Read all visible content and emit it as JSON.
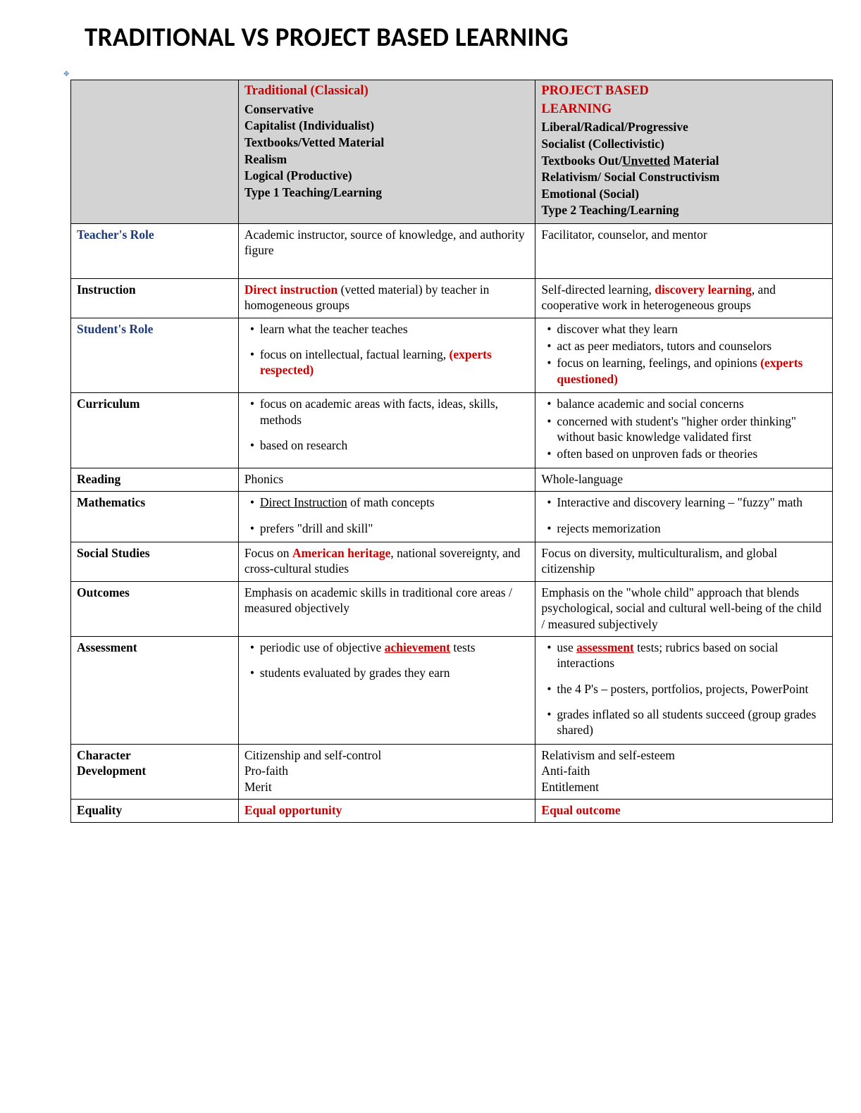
{
  "title": "TRADITIONAL VS PROJECT BASED LEARNING",
  "colors": {
    "red": "#cc0000",
    "blue_label": "#1f3a7a",
    "header_bg": "#d3d3d3",
    "border": "#000000",
    "text": "#000000"
  },
  "header": {
    "traditional": {
      "title": "Traditional (Classical)",
      "lines": [
        "Conservative",
        "Capitalist (Individualist)",
        "Textbooks/Vetted Material",
        "Realism",
        "Logical (Productive)",
        "Type 1  Teaching/Learning"
      ]
    },
    "pbl": {
      "title_line1": "PROJECT BASED",
      "title_line2": "LEARNING",
      "lines_html": [
        "Liberal/Radical/Progressive",
        "Socialist (Collectivistic)",
        "Textbooks Out/<span class='u'>Unvetted</span> Material",
        "Relativism/ Social Constructivism",
        "Emotional (Social)",
        "Type 2 Teaching/Learning"
      ]
    }
  },
  "rows": {
    "teachers_role": {
      "label": "Teacher's Role",
      "label_blue": true,
      "trad": "Academic instructor, source of knowledge, and authority figure",
      "pbl": "Facilitator, counselor, and mentor",
      "tall": true
    },
    "instruction": {
      "label": "Instruction",
      "trad_html": "<span class='red'>Direct instruction</span> (vetted material) by teacher in homogeneous groups",
      "pbl_html": "Self-directed learning, <span class='red'>discovery learning</span>, and cooperative work in heterogeneous groups"
    },
    "students_role": {
      "label": "Student's Role",
      "label_blue": true,
      "trad_list_html": [
        "learn what the teacher teaches",
        "focus on intellectual, factual learning,  <span class='red'>(experts respected)</span>"
      ],
      "trad_list_gaps": [
        false,
        true
      ],
      "pbl_list_html": [
        "discover what they learn",
        "act as peer mediators, tutors and counselors",
        "focus on learning, feelings, and opinions <span class='red'>(experts questioned)</span>"
      ],
      "pbl_list_gaps": [
        false,
        false,
        false
      ]
    },
    "curriculum": {
      "label": "Curriculum",
      "trad_list_html": [
        "focus on academic areas with facts, ideas, skills, methods",
        "based on research"
      ],
      "trad_list_gaps": [
        false,
        true
      ],
      "pbl_list_html": [
        "balance academic and social concerns",
        "concerned with student's \"higher order thinking\" without basic knowledge validated first",
        "often based on unproven fads or theories"
      ],
      "pbl_list_gaps": [
        false,
        false,
        false
      ]
    },
    "reading": {
      "label": "Reading",
      "trad": "Phonics",
      "pbl": "Whole-language"
    },
    "mathematics": {
      "label": "Mathematics",
      "trad_list_html": [
        "<span class='u'>Direct Instruction</span> of math concepts",
        "prefers \"drill and skill\""
      ],
      "trad_list_gaps": [
        false,
        true
      ],
      "pbl_list_html": [
        "Interactive and discovery learning – \"fuzzy\" math",
        "rejects memorization"
      ],
      "pbl_list_gaps": [
        false,
        true
      ]
    },
    "social_studies": {
      "label": "Social Studies",
      "trad_html": "Focus on <span class='red'>American heritage</span>, national sovereignty, and cross-cultural studies",
      "pbl": "Focus on diversity, multiculturalism, and global citizenship"
    },
    "outcomes": {
      "label": "Outcomes",
      "trad": "Emphasis on academic skills in traditional core areas / measured objectively",
      "pbl": "Emphasis on the \"whole child\" approach  that blends psychological, social and cultural well-being of the child / measured subjectively"
    },
    "assessment": {
      "label": "Assessment",
      "trad_list_html": [
        "periodic use of objective <span class='red u'>achievement</span> tests",
        "students evaluated by grades they earn"
      ],
      "trad_list_gaps": [
        false,
        true
      ],
      "pbl_list_html": [
        "use <span class='red u'>assessment</span>  tests; rubrics based on social interactions",
        "the 4 P's – posters, portfolios, projects, PowerPoint",
        "grades inflated so all students succeed  (group grades shared)"
      ],
      "pbl_list_gaps": [
        false,
        true,
        true
      ]
    },
    "character": {
      "label_line1": "Character",
      "label_line2": "Development",
      "trad_lines": [
        "Citizenship and self-control",
        "Pro-faith",
        "Merit"
      ],
      "pbl_lines": [
        "Relativism and self-esteem",
        "Anti-faith",
        "Entitlement"
      ]
    },
    "equality": {
      "label": "Equality",
      "trad_html": "<span class='red'>Equal opportunity</span>",
      "pbl_html": "<span class='red'>Equal outcome</span>"
    }
  }
}
